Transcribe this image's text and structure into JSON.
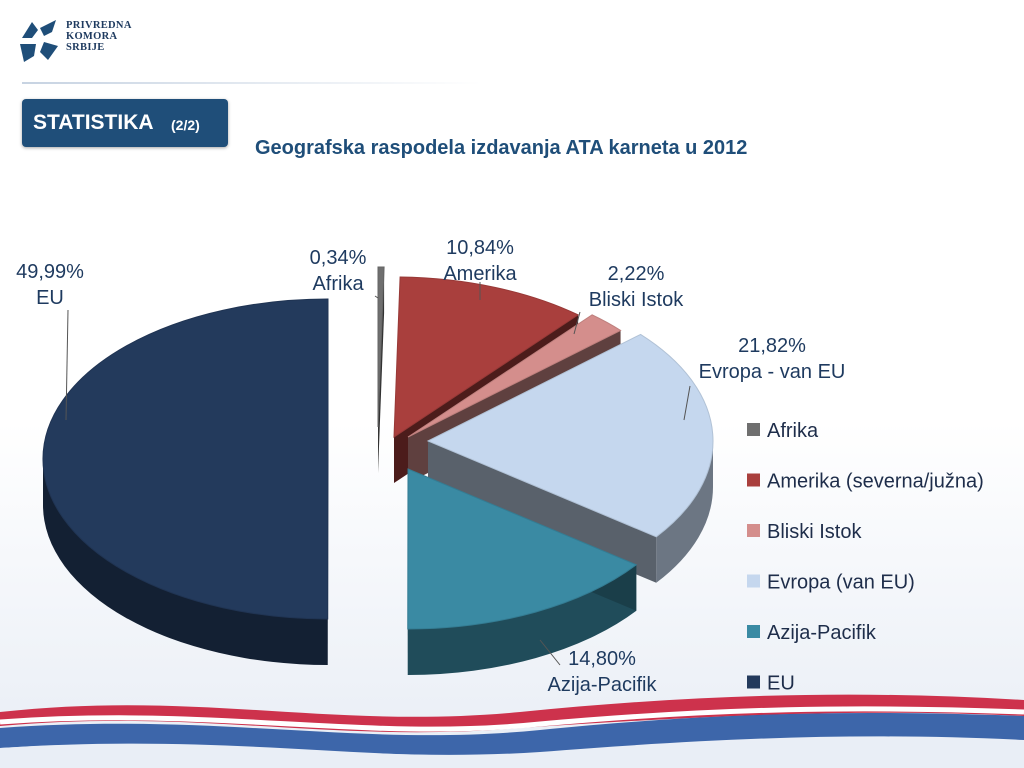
{
  "org": {
    "line1": "PRIVREDNA",
    "line2": "KOMORA",
    "line3": "SRBIJE"
  },
  "badge": {
    "main": "STATISTIKA",
    "sub": "(2/2)"
  },
  "chart_data": {
    "type": "pie",
    "title": "Geografska raspodela izdavanja ATA karneta u 2012",
    "slices": [
      {
        "legend": "Afrika",
        "label": "Afrika",
        "pct_text": "0,34%",
        "value": 0.34,
        "color": "#6f6f6f"
      },
      {
        "legend": "Amerika (severna/južna)",
        "label": "Amerika",
        "pct_text": "10,84%",
        "value": 10.84,
        "color": "#a93f3d"
      },
      {
        "legend": "Bliski Istok",
        "label": "Bliski  Istok",
        "pct_text": "2,22%",
        "value": 2.22,
        "color": "#d48e8c"
      },
      {
        "legend": "Evropa (van EU)",
        "label": "Evropa - van EU",
        "pct_text": "21,82%",
        "value": 21.82,
        "color": "#c5d7ee"
      },
      {
        "legend": "Azija-Pacifik",
        "label": "Azija-Pacifik",
        "pct_text": "14,80%",
        "value": 14.8,
        "color": "#3a8aa3"
      },
      {
        "legend": "EU",
        "label": "EU",
        "pct_text": "49,99%",
        "value": 49.99,
        "color": "#233a5c"
      }
    ],
    "legend_placement": "right"
  }
}
